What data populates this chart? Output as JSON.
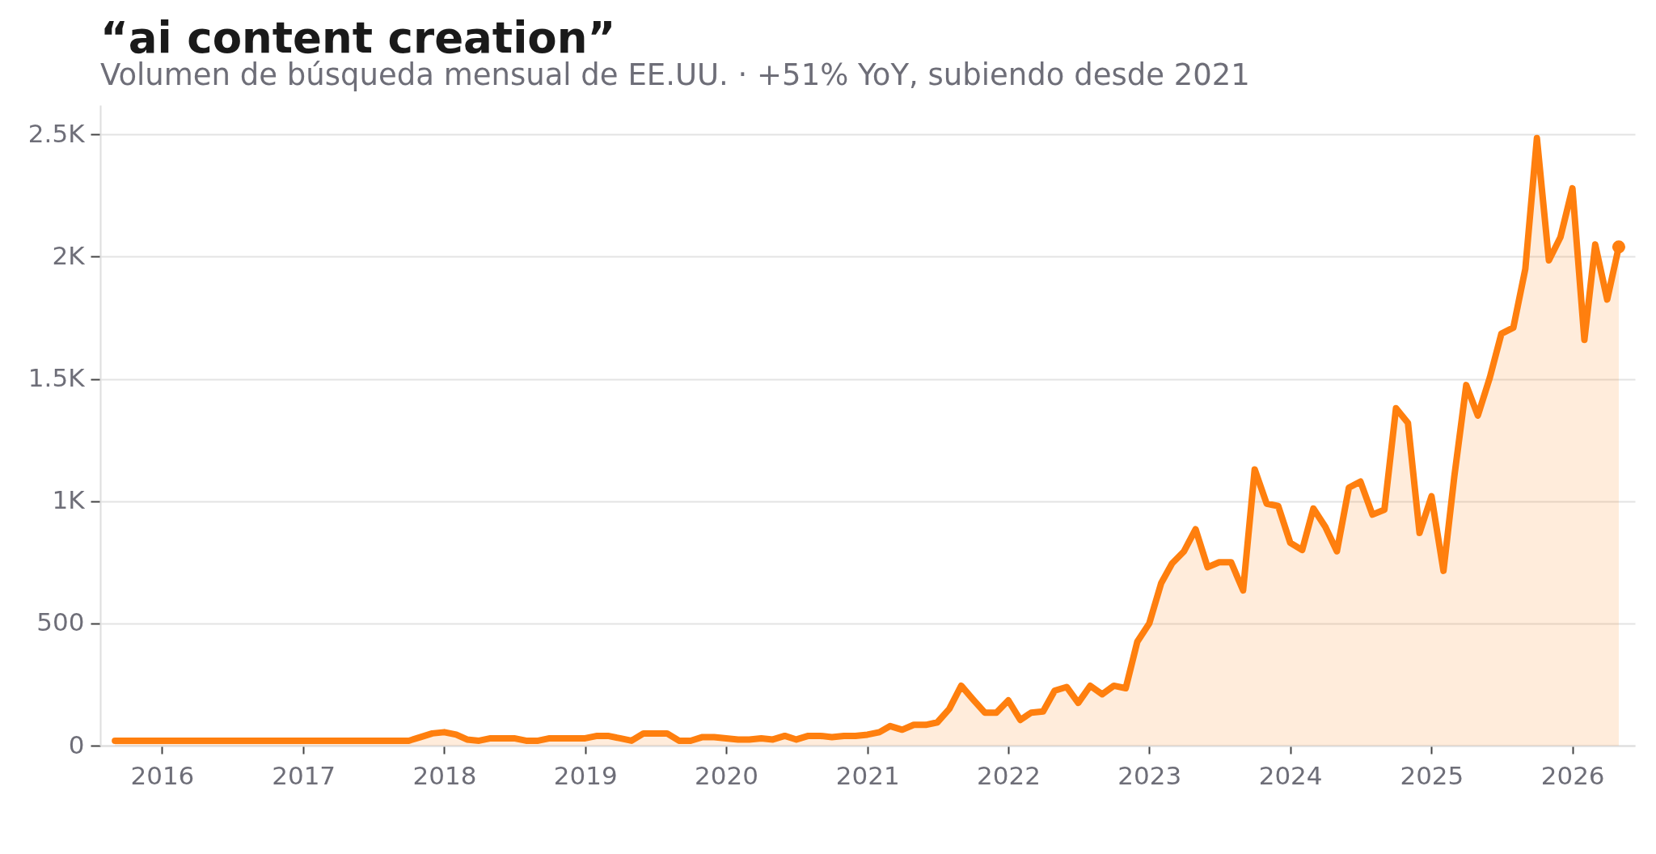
{
  "chart_data": {
    "type": "area",
    "title": "“ai content creation”",
    "subtitle": "Volumen de búsqueda mensual de EE.UU. · +51% YoY, subiendo desde 2021",
    "x": [
      "2015-09",
      "2015-10",
      "2015-11",
      "2015-12",
      "2016-01",
      "2016-02",
      "2016-03",
      "2016-04",
      "2016-05",
      "2016-06",
      "2016-07",
      "2016-08",
      "2016-09",
      "2016-10",
      "2016-11",
      "2016-12",
      "2017-01",
      "2017-02",
      "2017-03",
      "2017-04",
      "2017-05",
      "2017-06",
      "2017-07",
      "2017-08",
      "2017-09",
      "2017-10",
      "2017-11",
      "2017-12",
      "2018-01",
      "2018-02",
      "2018-03",
      "2018-04",
      "2018-05",
      "2018-06",
      "2018-07",
      "2018-08",
      "2018-09",
      "2018-10",
      "2018-11",
      "2018-12",
      "2019-01",
      "2019-02",
      "2019-03",
      "2019-04",
      "2019-05",
      "2019-06",
      "2019-07",
      "2019-08",
      "2019-09",
      "2019-10",
      "2019-11",
      "2019-12",
      "2020-01",
      "2020-02",
      "2020-03",
      "2020-04",
      "2020-05",
      "2020-06",
      "2020-07",
      "2020-08",
      "2020-09",
      "2020-10",
      "2020-11",
      "2020-12",
      "2021-01",
      "2021-02",
      "2021-03",
      "2021-04",
      "2021-05",
      "2021-06",
      "2021-07",
      "2021-08",
      "2021-09",
      "2021-10",
      "2021-11",
      "2021-12",
      "2022-01",
      "2022-02",
      "2022-03",
      "2022-04",
      "2022-05",
      "2022-06",
      "2022-07",
      "2022-08",
      "2022-09",
      "2022-10",
      "2022-11",
      "2022-12",
      "2023-01",
      "2023-02",
      "2023-03",
      "2023-04",
      "2023-05",
      "2023-06",
      "2023-07",
      "2023-08",
      "2023-09",
      "2023-10",
      "2023-11",
      "2023-12",
      "2024-01",
      "2024-02",
      "2024-03",
      "2024-04",
      "2024-05",
      "2024-06",
      "2024-07",
      "2024-08",
      "2024-09",
      "2024-10",
      "2024-11",
      "2024-12",
      "2025-01",
      "2025-02",
      "2025-03",
      "2025-04",
      "2025-05",
      "2025-06",
      "2025-07",
      "2025-08",
      "2025-09",
      "2025-10",
      "2025-11",
      "2025-12",
      "2026-01",
      "2026-02",
      "2026-03",
      "2026-04",
      "2026-05"
    ],
    "series": [
      {
        "color": "#ff7f0e",
        "values": [
          20,
          20,
          20,
          20,
          20,
          20,
          20,
          20,
          20,
          20,
          20,
          20,
          20,
          20,
          20,
          20,
          20,
          20,
          20,
          20,
          20,
          20,
          20,
          20,
          20,
          20,
          35,
          50,
          55,
          45,
          25,
          20,
          30,
          30,
          30,
          20,
          20,
          30,
          30,
          30,
          30,
          40,
          40,
          30,
          20,
          50,
          50,
          50,
          20,
          20,
          35,
          35,
          30,
          25,
          25,
          30,
          25,
          40,
          25,
          40,
          40,
          35,
          40,
          40,
          45,
          55,
          80,
          65,
          85,
          85,
          95,
          150,
          245,
          190,
          135,
          135,
          185,
          105,
          135,
          140,
          225,
          240,
          175,
          245,
          210,
          245,
          235,
          425,
          500,
          665,
          745,
          795,
          885,
          730,
          750,
          750,
          635,
          1130,
          990,
          980,
          830,
          800,
          970,
          895,
          795,
          1055,
          1080,
          945,
          965,
          1380,
          1320,
          870,
          1020,
          715,
          1100,
          1475,
          1350,
          1505,
          1685,
          1710,
          1950,
          2485,
          1985,
          2080,
          2280,
          1660,
          2050,
          1825,
          2040
        ]
      }
    ],
    "xlim": [
      "2015-07-25",
      "2026-06-12"
    ],
    "xticks": [
      "2016",
      "2017",
      "2018",
      "2019",
      "2020",
      "2021",
      "2022",
      "2023",
      "2024",
      "2025",
      "2026"
    ],
    "ylim": [
      0,
      2620
    ],
    "yticks": [
      0,
      500,
      {
        "value": 1000,
        "label": "1K"
      },
      {
        "value": 1500,
        "label": "1.5K"
      },
      {
        "value": 2000,
        "label": "2K"
      },
      {
        "value": 2500,
        "label": "2.5K"
      }
    ],
    "grid": "y"
  }
}
